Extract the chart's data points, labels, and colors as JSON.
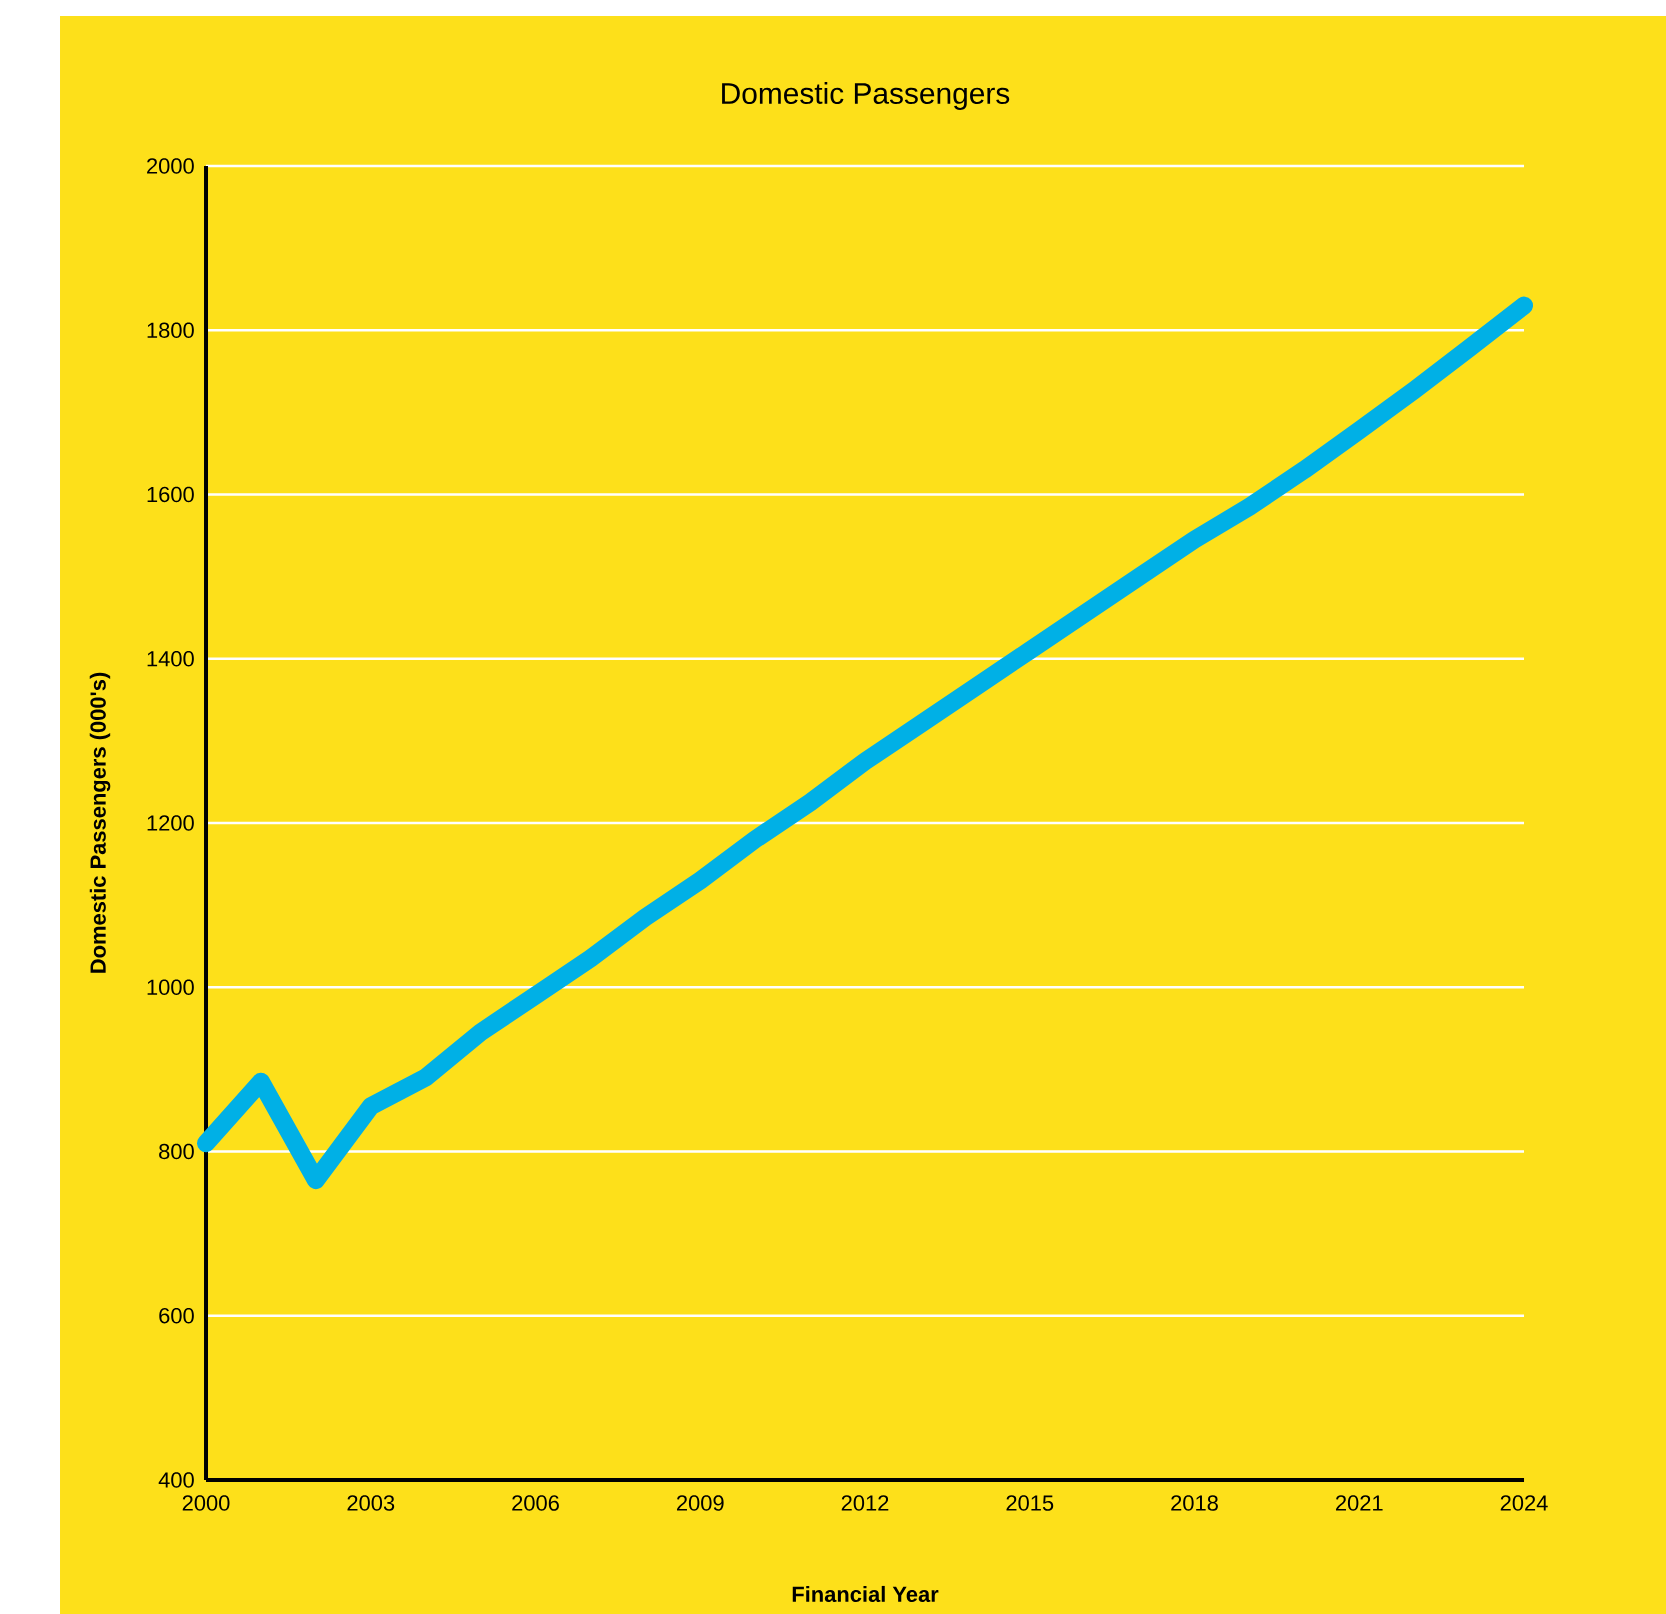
{
  "chart_data": {
    "type": "line",
    "title": "Domestic Passengers",
    "xlabel": "Financial Year",
    "ylabel": "Domestic Passengers (000's)",
    "x": [
      2000,
      2001,
      2002,
      2003,
      2004,
      2005,
      2006,
      2007,
      2008,
      2009,
      2010,
      2011,
      2012,
      2013,
      2014,
      2015,
      2016,
      2017,
      2018,
      2019,
      2020,
      2021,
      2022,
      2023,
      2024
    ],
    "series": [
      {
        "color": "#00b0e6",
        "values": [
          810,
          885,
          765,
          855,
          890,
          945,
          990,
          1035,
          1085,
          1130,
          1180,
          1225,
          1275,
          1320,
          1365,
          1410,
          1455,
          1500,
          1545,
          1585,
          1630,
          1678,
          1727,
          1778,
          1830
        ]
      }
    ],
    "xlim": [
      2000,
      2024
    ],
    "ylim": [
      400,
      2000
    ],
    "xticks": [
      2000,
      2003,
      2006,
      2009,
      2012,
      2015,
      2018,
      2021,
      2024
    ],
    "yticks": [
      400,
      600,
      800,
      1000,
      1200,
      1400,
      1600,
      1800,
      2000
    ],
    "grid": "y"
  }
}
